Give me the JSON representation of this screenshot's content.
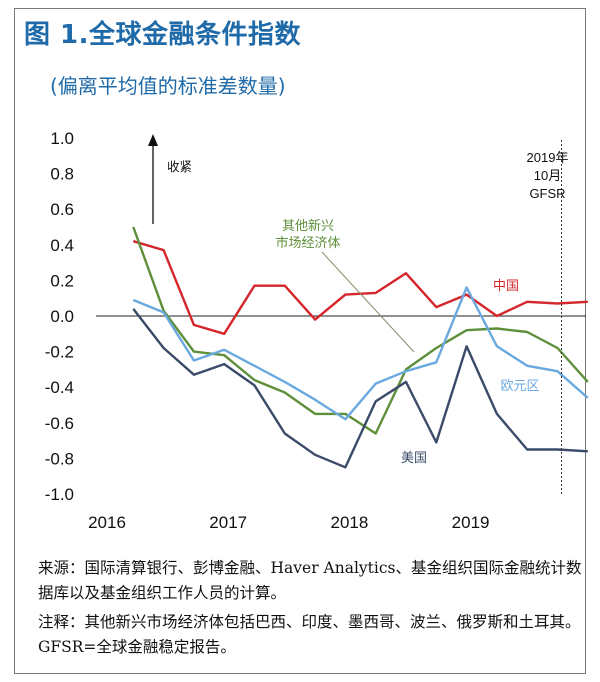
{
  "figure": {
    "title": "图 1.全球金融条件指数",
    "subtitle": "(偏离平均值的标准差数量)"
  },
  "colors": {
    "title": "#1f6aa8",
    "china": "#d4262b",
    "other_em": "#5e8f3a",
    "euro_area": "#6aa9e0",
    "us": "#3a4a68"
  },
  "chart_data": {
    "type": "line",
    "ylim": [
      -1.0,
      1.0
    ],
    "yticks": [
      "1.0",
      "0.8",
      "0.6",
      "0.4",
      "0.2",
      "0.0",
      "-0.2",
      "-0.4",
      "-0.6",
      "-0.8",
      "-1.0"
    ],
    "xticks": [
      "2016",
      "2017",
      "2018",
      "2019"
    ],
    "x": [
      "2016Q2",
      "2016Q3",
      "2016Q4",
      "2017Q1",
      "2017Q2",
      "2017Q3",
      "2017Q4",
      "2018Q1",
      "2018Q2",
      "2018Q3",
      "2018Q4",
      "2019Q1",
      "2019Q2",
      "2019Q3",
      "2019Q4",
      "2020Q1"
    ],
    "series": [
      {
        "name": "中国",
        "color": "#d4262b",
        "values": [
          0.42,
          0.37,
          -0.05,
          -0.1,
          0.17,
          0.17,
          -0.02,
          0.12,
          0.13,
          0.24,
          0.05,
          0.12,
          0.0,
          0.08,
          0.07,
          0.08
        ]
      },
      {
        "name": "其他新兴市场经济体",
        "color": "#5e8f3a",
        "values": [
          0.5,
          0.03,
          -0.2,
          -0.22,
          -0.36,
          -0.43,
          -0.55,
          -0.55,
          -0.66,
          -0.3,
          -0.18,
          -0.08,
          -0.07,
          -0.09,
          -0.18,
          -0.37
        ]
      },
      {
        "name": "欧元区",
        "color": "#6aa9e0",
        "values": [
          0.09,
          0.02,
          -0.25,
          -0.19,
          -0.28,
          -0.37,
          -0.47,
          -0.58,
          -0.38,
          -0.31,
          -0.26,
          0.16,
          -0.17,
          -0.28,
          -0.31,
          -0.46
        ]
      },
      {
        "name": "美国",
        "color": "#3a4a68",
        "values": [
          0.04,
          -0.18,
          -0.33,
          -0.27,
          -0.39,
          -0.66,
          -0.78,
          -0.85,
          -0.48,
          -0.37,
          -0.71,
          -0.17,
          -0.55,
          -0.75,
          -0.75,
          -0.76
        ]
      }
    ],
    "annotations": {
      "tightening": "收紧",
      "gfsr_line": [
        "2019年",
        "10月",
        "GFSR"
      ]
    }
  },
  "notes": {
    "source": "来源：国际清算银行、彭博金融、Haver Analytics、基金组织国际金融统计数据库以及基金组织工作人员的计算。",
    "note": "注释：其他新兴市场经济体包括巴西、印度、墨西哥、波兰、俄罗斯和土耳其。GFSR=全球金融稳定报告。"
  }
}
